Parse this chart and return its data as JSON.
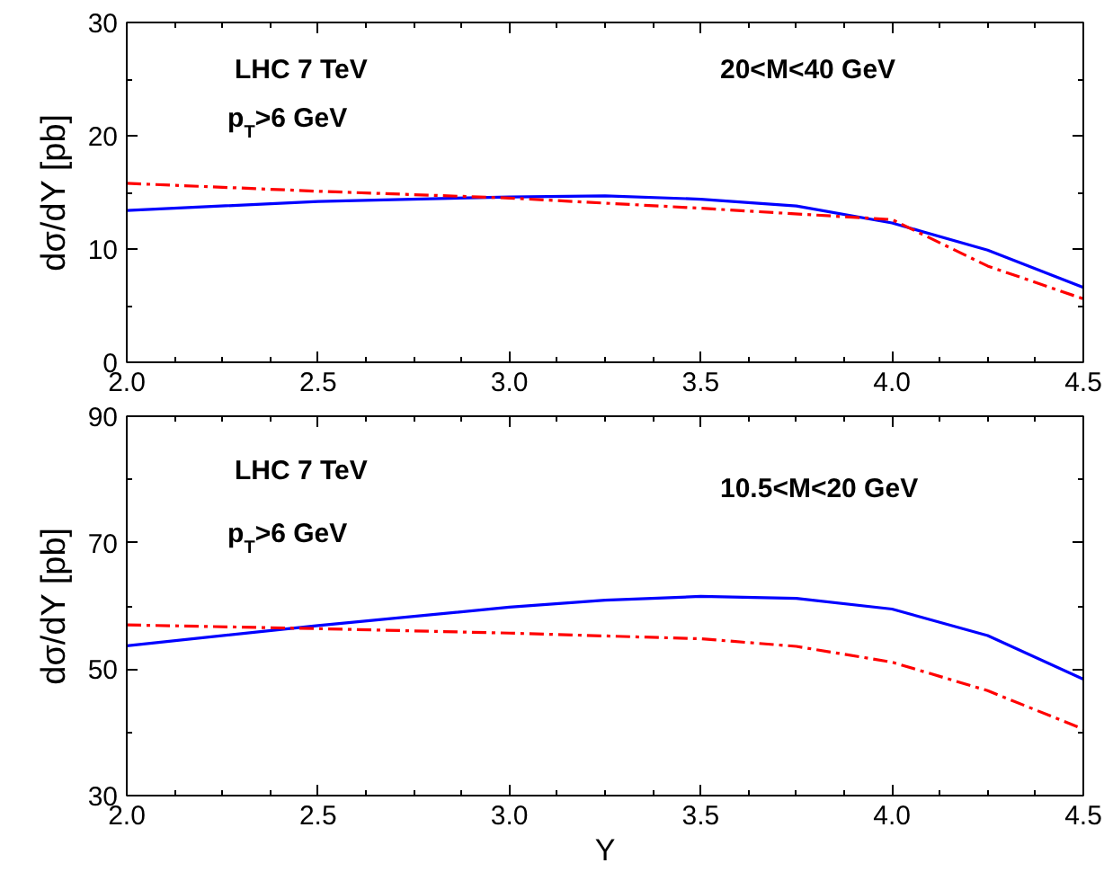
{
  "chart_data": [
    {
      "type": "line",
      "ylabel": "dσ/dY [pb]",
      "xlim": [
        2.0,
        4.5
      ],
      "ylim": [
        0,
        30
      ],
      "xticks": [
        {
          "value": 2.0,
          "label": "2.0"
        },
        {
          "value": 2.5,
          "label": "2.5"
        },
        {
          "value": 3.0,
          "label": "3.0"
        },
        {
          "value": 3.5,
          "label": "3.5"
        },
        {
          "value": 4.0,
          "label": "4.0"
        },
        {
          "value": 4.5,
          "label": "4.5"
        }
      ],
      "yticks": [
        0,
        10,
        20,
        30
      ],
      "grid": false,
      "annotations": [
        "LHC 7 TeV",
        "p$_{T}$>6 GeV",
        "20<M<40 GeV"
      ],
      "series": [
        {
          "color": "#0000ff",
          "line_style": "solid",
          "x": [
            2.0,
            2.5,
            3.0,
            3.25,
            3.5,
            3.75,
            4.0,
            4.25,
            4.5
          ],
          "values": [
            13.4,
            14.2,
            14.6,
            14.7,
            14.4,
            13.8,
            12.3,
            9.9,
            6.6
          ]
        },
        {
          "color": "#ff0000",
          "line_style": "dashed",
          "x": [
            2.0,
            2.5,
            3.0,
            3.5,
            4.0,
            4.25,
            4.5
          ],
          "values": [
            15.8,
            15.1,
            14.5,
            13.6,
            12.6,
            8.5,
            5.6
          ]
        }
      ]
    },
    {
      "type": "line",
      "xlabel": "Y",
      "ylabel": "dσ/dY [pb]",
      "xlim": [
        2.0,
        4.5
      ],
      "ylim": [
        30,
        90
      ],
      "xticks": [
        {
          "value": 2.0,
          "label": "2.0"
        },
        {
          "value": 2.5,
          "label": "2.5"
        },
        {
          "value": 3.0,
          "label": "3.0"
        },
        {
          "value": 3.5,
          "label": "3.5"
        },
        {
          "value": 4.0,
          "label": "4.0"
        },
        {
          "value": 4.5,
          "label": "4.5"
        }
      ],
      "yticks": [
        30,
        50,
        70,
        90
      ],
      "grid": false,
      "annotations": [
        "LHC 7 TeV",
        "p$_{T}$>6 GeV",
        "10.5<M<20 GeV"
      ],
      "series": [
        {
          "color": "#0000ff",
          "line_style": "solid",
          "x": [
            2.0,
            2.5,
            3.0,
            3.25,
            3.5,
            3.75,
            4.0,
            4.25,
            4.5
          ],
          "values": [
            53.7,
            56.9,
            59.8,
            60.9,
            61.5,
            61.2,
            59.5,
            55.3,
            48.4
          ]
        },
        {
          "color": "#ff0000",
          "line_style": "dashed",
          "x": [
            2.0,
            2.5,
            3.0,
            3.5,
            3.75,
            4.0,
            4.25,
            4.5
          ],
          "values": [
            57.0,
            56.4,
            55.7,
            54.8,
            53.6,
            51.1,
            46.6,
            40.5
          ]
        }
      ]
    }
  ]
}
